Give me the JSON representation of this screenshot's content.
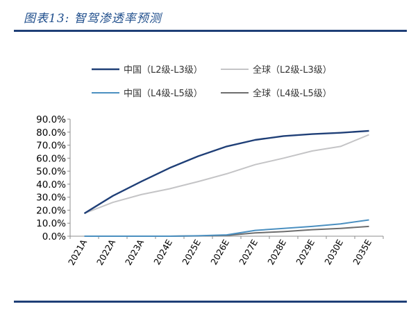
{
  "figure": {
    "title": "图表13:  智驾渗透率预测"
  },
  "chart_data": {
    "type": "line",
    "categories": [
      "2021A",
      "2022A",
      "2023A",
      "2024E",
      "2025E",
      "2026E",
      "2027E",
      "2028E",
      "2029E",
      "2030E",
      "2035E"
    ],
    "ylim": [
      0,
      90
    ],
    "y_ticks": [
      "0.0%",
      "10.0%",
      "20.0%",
      "30.0%",
      "40.0%",
      "50.0%",
      "60.0%",
      "70.0%",
      "80.0%",
      "90.0%"
    ],
    "grid": false,
    "legend_position": "top",
    "series": [
      {
        "name": "中国（L2级-L3级）",
        "color": "#1f3f77",
        "values": [
          17.5,
          31,
          42,
          52.5,
          61.5,
          69,
          74,
          77,
          78.5,
          79.5,
          81
        ]
      },
      {
        "name": "全球（L2级-L3级）",
        "color": "#c4c4c6",
        "values": [
          17.5,
          26,
          32,
          36.5,
          42,
          48,
          55,
          60,
          65.5,
          69,
          78
        ]
      },
      {
        "name": "中国（L4级-L5级）",
        "color": "#4a8fc0",
        "values": [
          0,
          0,
          0,
          0,
          0.3,
          1,
          4.5,
          6,
          7.5,
          9.5,
          12.5
        ]
      },
      {
        "name": "全球（L4级-L5级）",
        "color": "#6d6d6d",
        "values": [
          0,
          0,
          0,
          0,
          0.2,
          0.6,
          2.5,
          3.5,
          5,
          6,
          7.5
        ]
      }
    ]
  }
}
